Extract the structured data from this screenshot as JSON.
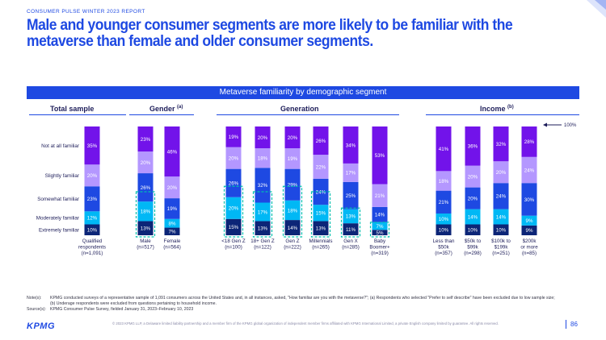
{
  "header": {
    "kicker": "CONSUMER PULSE WINTER 2023 REPORT",
    "title": "Male and younger consumer segments are more likely to be familiar with the metaverse than female and older consumer segments."
  },
  "band_title": "Metaverse familiarity by demographic segment",
  "sections": [
    {
      "label": "Total sample",
      "sup": ""
    },
    {
      "label": "Gender",
      "sup": "(a)"
    },
    {
      "label": "Generation",
      "sup": ""
    },
    {
      "label": "Income",
      "sup": "(b)"
    }
  ],
  "colors": {
    "brand": "#1e49e2",
    "Not at all familiar": "#7213ea",
    "Slightly familiar": "#b497ff",
    "Somewhat familiar": "#1e49e2",
    "Moderately familiar": "#00b8f5",
    "Extremely familiar": "#0c2577",
    "highlight": "#00c0ae"
  },
  "chart_data": {
    "type": "bar",
    "stacked": true,
    "percent_scale": true,
    "series": [
      {
        "name": "Extremely familiar",
        "values": [
          10,
          13,
          7,
          15,
          13,
          14,
          13,
          11,
          5,
          10,
          10,
          10,
          9
        ]
      },
      {
        "name": "Moderately familiar",
        "values": [
          12,
          18,
          8,
          20,
          17,
          18,
          15,
          13,
          7,
          10,
          14,
          14,
          9
        ]
      },
      {
        "name": "Somewhat familiar",
        "values": [
          23,
          26,
          19,
          26,
          32,
          29,
          24,
          25,
          14,
          21,
          20,
          24,
          30
        ]
      },
      {
        "name": "Slightly familiar",
        "values": [
          20,
          20,
          20,
          20,
          18,
          19,
          22,
          17,
          21,
          18,
          20,
          20,
          24
        ]
      },
      {
        "name": "Not at all familiar",
        "values": [
          35,
          23,
          46,
          19,
          20,
          20,
          26,
          34,
          53,
          41,
          36,
          32,
          28
        ]
      }
    ],
    "groups": [
      {
        "section": "Total sample",
        "bars": [
          {
            "label": [
              "Qualified",
              "respondents",
              "(n=1,091)"
            ]
          }
        ]
      },
      {
        "section": "Gender",
        "bars": [
          {
            "label": [
              "Male",
              "(n=517)"
            ]
          },
          {
            "label": [
              "Female",
              "(n=564)"
            ]
          }
        ]
      },
      {
        "section": "Generation",
        "bars": [
          {
            "label": [
              "<18 Gen Z",
              "(n=100)"
            ]
          },
          {
            "label": [
              "18+ Gen Z",
              "(n=122)"
            ]
          },
          {
            "label": [
              "Gen Z",
              "(n=222)"
            ]
          },
          {
            "label": [
              "Millennials",
              "(n=265)"
            ]
          },
          {
            "label": [
              "Gen X",
              "(n=285)"
            ]
          },
          {
            "label": [
              "Baby",
              "Boomer+",
              "(n=319)"
            ]
          }
        ]
      },
      {
        "section": "Income",
        "bars": [
          {
            "label": [
              "Less than",
              "$50k",
              "(n=357)"
            ]
          },
          {
            "label": [
              "$50k to",
              "$99k",
              "(n=298)"
            ]
          },
          {
            "label": [
              "$100k to",
              "$199k",
              "(n=251)"
            ]
          },
          {
            "label": [
              "$200k",
              "or more",
              "(n=85)"
            ]
          }
        ]
      }
    ],
    "highlighted_bars": [
      1,
      3,
      4,
      5,
      6,
      7,
      8
    ],
    "highlight_tops": [
      [
        1,
        40
      ],
      [
        3,
        45
      ],
      [
        4,
        40
      ],
      [
        5,
        45
      ],
      [
        6,
        40
      ],
      [
        7,
        25
      ],
      [
        8,
        12
      ]
    ],
    "annotation": "100%"
  },
  "notes": {
    "note_label": "Note(s):",
    "note_lines": [
      "KPMG conducted surveys of a representative sample of 1,091 consumers across the United States and, in all instances, asked, \"How familiar are you with the metaverse?\"; (a) Respondents who selected \"Prefer to self describe\" have been excluded due to low sample size;",
      "(b) Underage respondents were excluded from questions pertaining to household income."
    ],
    "source_label": "Source(s):",
    "source_text": "KPMG Consumer Pulse Survey, fielded January 31, 2023–February 10, 2023"
  },
  "footer": {
    "logo": "KPMG",
    "legal": "© 2023 KPMG LLP, a Delaware limited liability partnership and a member firm of the KPMG global organization of independent member firms affiliated with KPMG International Limited, a private English company limited by guarantee. All rights reserved.",
    "page": "86"
  }
}
